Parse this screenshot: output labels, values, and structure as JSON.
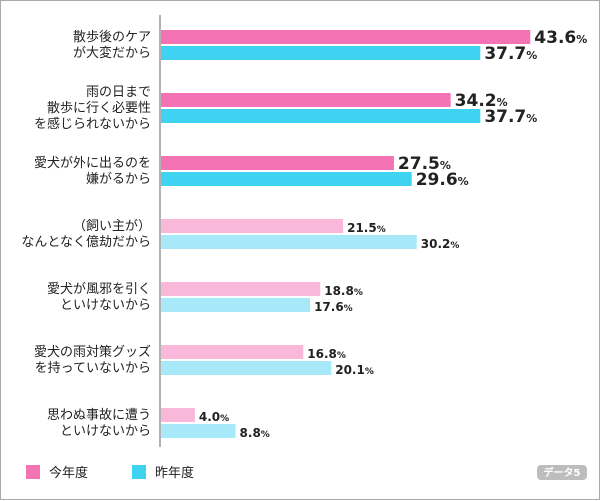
{
  "chart_data": {
    "type": "bar",
    "orientation": "horizontal",
    "unit": "%",
    "xlim": [
      0,
      50
    ],
    "grid": false,
    "legend_position": "bottom-left",
    "categories": [
      [
        "散歩後のケア",
        "が大変だから"
      ],
      [
        "雨の日まで",
        "散歩に行く必要性",
        "を感じられないから"
      ],
      [
        "愛犬が外に出るのを",
        "嫌がるから"
      ],
      [
        "（飼い主が）",
        "なんとなく億劫だから"
      ],
      [
        "愛犬が風邪を引く",
        "といけないから"
      ],
      [
        "愛犬の雨対策グッズ",
        "を持っていないから"
      ],
      [
        "思わぬ事故に遭う",
        "といけないから"
      ]
    ],
    "series": [
      {
        "name": "今年度",
        "values": [
          43.6,
          34.2,
          27.5,
          21.5,
          18.8,
          16.8,
          4.0
        ],
        "value_labels": [
          "43.6",
          "34.2",
          "27.5",
          "21.5",
          "18.8",
          "16.8",
          "4.0"
        ]
      },
      {
        "name": "昨年度",
        "values": [
          37.7,
          37.7,
          29.6,
          30.2,
          17.6,
          20.1,
          8.8
        ],
        "value_labels": [
          "37.7",
          "37.7",
          "29.6",
          "30.2",
          "17.6",
          "20.1",
          "8.8"
        ]
      }
    ],
    "colors": {
      "current_strong": "#f473b4",
      "current_light": "#f9b8d9",
      "previous_strong": "#3fd3f1",
      "previous_light": "#a7e9f8"
    },
    "highlighted_count": 3,
    "badge": "データ5"
  }
}
